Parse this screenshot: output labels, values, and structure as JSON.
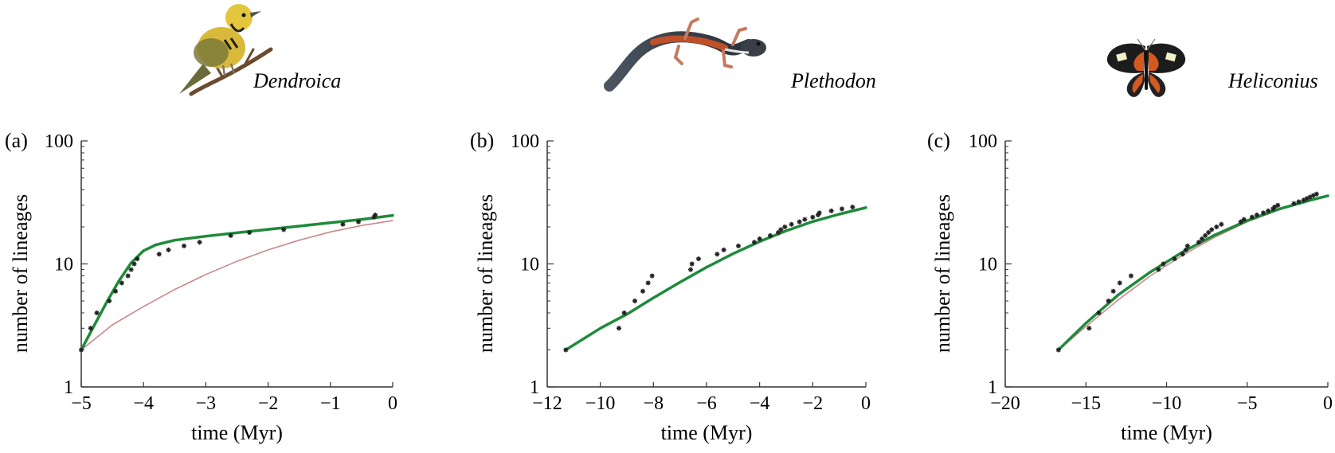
{
  "colors": {
    "fit_green": "#1f8a3a",
    "fit_pink": "#c98a8a",
    "points": "#222222",
    "axis": "#333333"
  },
  "panels": [
    {
      "id": "a",
      "panel_label": "(a)",
      "genus": "Dendroica",
      "icon": "warbler-bird-icon",
      "xlabel": "time (Myr)",
      "ylabel": "number of lineages"
    },
    {
      "id": "b",
      "panel_label": "(b)",
      "genus": "Plethodon",
      "icon": "salamander-icon",
      "xlabel": "time (Myr)",
      "ylabel": "number of lineages"
    },
    {
      "id": "c",
      "panel_label": "(c)",
      "genus": "Heliconius",
      "icon": "butterfly-icon",
      "xlabel": "time (Myr)",
      "ylabel": "number of lineages"
    }
  ],
  "chart_data": [
    {
      "type": "scatter",
      "title": "Dendroica",
      "xlabel": "time (Myr)",
      "ylabel": "number of lineages",
      "xlim": [
        -5,
        0
      ],
      "ylim": [
        1,
        100
      ],
      "yscale": "log",
      "xticks": [
        -5,
        -4,
        -3,
        -2,
        -1,
        0
      ],
      "yticks": [
        1,
        10,
        100
      ],
      "points": [
        [
          -5,
          2
        ],
        [
          -4.85,
          3
        ],
        [
          -4.75,
          4
        ],
        [
          -4.55,
          5
        ],
        [
          -4.45,
          6
        ],
        [
          -4.35,
          7
        ],
        [
          -4.25,
          8
        ],
        [
          -4.2,
          9
        ],
        [
          -4.15,
          10
        ],
        [
          -4.1,
          11
        ],
        [
          -3.75,
          12
        ],
        [
          -3.6,
          13
        ],
        [
          -3.35,
          14
        ],
        [
          -3.1,
          15
        ],
        [
          -2.6,
          17
        ],
        [
          -2.3,
          18
        ],
        [
          -1.75,
          19
        ],
        [
          -0.8,
          21
        ],
        [
          -0.55,
          22
        ],
        [
          -0.3,
          24
        ],
        [
          -0.28,
          25
        ]
      ],
      "series": [
        {
          "color": "#1f8a3a",
          "x": [
            -5,
            -4.8,
            -4.6,
            -4.4,
            -4.2,
            -4,
            -3.8,
            -3.5,
            -3,
            -2.5,
            -2,
            -1.5,
            -1,
            -0.5,
            0
          ],
          "y": [
            2,
            3.1,
            4.8,
            7.2,
            10.2,
            12.8,
            14.3,
            15.6,
            16.8,
            17.9,
            19.1,
            20.3,
            21.6,
            23,
            24.8
          ]
        },
        {
          "color": "#c98a8a",
          "x": [
            -5,
            -4.5,
            -4,
            -3.5,
            -3,
            -2.5,
            -2,
            -1.5,
            -1,
            -0.5,
            0
          ],
          "y": [
            2,
            3.2,
            4.5,
            6.2,
            8.2,
            10.5,
            13,
            15.6,
            18.2,
            20.5,
            22.5
          ]
        }
      ]
    },
    {
      "type": "scatter",
      "title": "Plethodon",
      "xlabel": "time (Myr)",
      "ylabel": "number of lineages",
      "xlim": [
        -12,
        0
      ],
      "ylim": [
        1,
        100
      ],
      "yscale": "log",
      "xticks": [
        -12,
        -10,
        -8,
        -6,
        -4,
        -2,
        0
      ],
      "yticks": [
        1,
        10,
        100
      ],
      "points": [
        [
          -11.3,
          2
        ],
        [
          -9.3,
          3
        ],
        [
          -9.1,
          4
        ],
        [
          -8.7,
          5
        ],
        [
          -8.4,
          6
        ],
        [
          -8.2,
          7
        ],
        [
          -8.05,
          8
        ],
        [
          -6.6,
          9
        ],
        [
          -6.55,
          10
        ],
        [
          -6.3,
          11
        ],
        [
          -5.6,
          12
        ],
        [
          -5.35,
          13
        ],
        [
          -4.8,
          14
        ],
        [
          -4.2,
          15
        ],
        [
          -4.0,
          16
        ],
        [
          -3.6,
          17
        ],
        [
          -3.3,
          18
        ],
        [
          -3.2,
          19
        ],
        [
          -3.05,
          20
        ],
        [
          -2.8,
          21
        ],
        [
          -2.5,
          22
        ],
        [
          -2.3,
          23
        ],
        [
          -2.0,
          24
        ],
        [
          -1.8,
          25
        ],
        [
          -1.75,
          26
        ],
        [
          -1.3,
          27
        ],
        [
          -0.9,
          28
        ],
        [
          -0.5,
          29
        ]
      ],
      "series": [
        {
          "color": "#1f8a3a",
          "x": [
            -11.3,
            -10,
            -9,
            -8,
            -7,
            -6,
            -5,
            -4,
            -3,
            -2,
            -1,
            0
          ],
          "y": [
            2,
            3,
            3.9,
            5.3,
            7.1,
            9.4,
            12.1,
            15.2,
            18.6,
            22.1,
            25.4,
            28.7
          ]
        },
        {
          "color": "#c98a8a",
          "x": [
            -11.3,
            -10,
            -9,
            -8,
            -7,
            -6,
            -5,
            -4,
            -3,
            -2,
            -1,
            0
          ],
          "y": [
            2,
            3,
            3.9,
            5.3,
            7.1,
            9.4,
            12.1,
            15.2,
            18.6,
            22.1,
            25.4,
            28.7
          ]
        }
      ]
    },
    {
      "type": "scatter",
      "title": "Heliconius",
      "xlabel": "time (Myr)",
      "ylabel": "number of lineages",
      "xlim": [
        -20,
        0
      ],
      "ylim": [
        1,
        100
      ],
      "yscale": "log",
      "xticks": [
        -20,
        -15,
        -10,
        -5,
        0
      ],
      "yticks": [
        1,
        10,
        100
      ],
      "points": [
        [
          -16.7,
          2
        ],
        [
          -14.8,
          3
        ],
        [
          -14.2,
          4
        ],
        [
          -13.6,
          5
        ],
        [
          -13.3,
          6
        ],
        [
          -12.9,
          7
        ],
        [
          -12.2,
          8
        ],
        [
          -10.5,
          9
        ],
        [
          -10.2,
          10
        ],
        [
          -9.5,
          11
        ],
        [
          -9.0,
          12
        ],
        [
          -8.8,
          13
        ],
        [
          -8.7,
          14
        ],
        [
          -8.0,
          15
        ],
        [
          -7.8,
          16
        ],
        [
          -7.6,
          17
        ],
        [
          -7.4,
          18
        ],
        [
          -7.2,
          19
        ],
        [
          -6.9,
          20
        ],
        [
          -6.6,
          21
        ],
        [
          -5.4,
          22
        ],
        [
          -5.2,
          23
        ],
        [
          -4.7,
          24
        ],
        [
          -4.4,
          25
        ],
        [
          -4.0,
          26
        ],
        [
          -3.7,
          27
        ],
        [
          -3.4,
          28
        ],
        [
          -3.3,
          29
        ],
        [
          -3.1,
          30
        ],
        [
          -2.1,
          31
        ],
        [
          -1.8,
          32
        ],
        [
          -1.5,
          33
        ],
        [
          -1.3,
          34
        ],
        [
          -1.1,
          35
        ],
        [
          -0.9,
          36
        ],
        [
          -0.7,
          37
        ]
      ],
      "series": [
        {
          "color": "#1f8a3a",
          "x": [
            -16.7,
            -15,
            -13,
            -11,
            -9,
            -7,
            -5,
            -3,
            -1,
            0
          ],
          "y": [
            2,
            3.3,
            5.6,
            8.6,
            12.5,
            17.2,
            22.5,
            28,
            33.2,
            35.8
          ]
        },
        {
          "color": "#c98a8a",
          "x": [
            -16.7,
            -15,
            -13,
            -11,
            -9,
            -7,
            -5,
            -3,
            -1,
            0
          ],
          "y": [
            2,
            3.1,
            5.1,
            8,
            11.8,
            16.5,
            22,
            27.6,
            33,
            35.5
          ]
        }
      ]
    }
  ]
}
